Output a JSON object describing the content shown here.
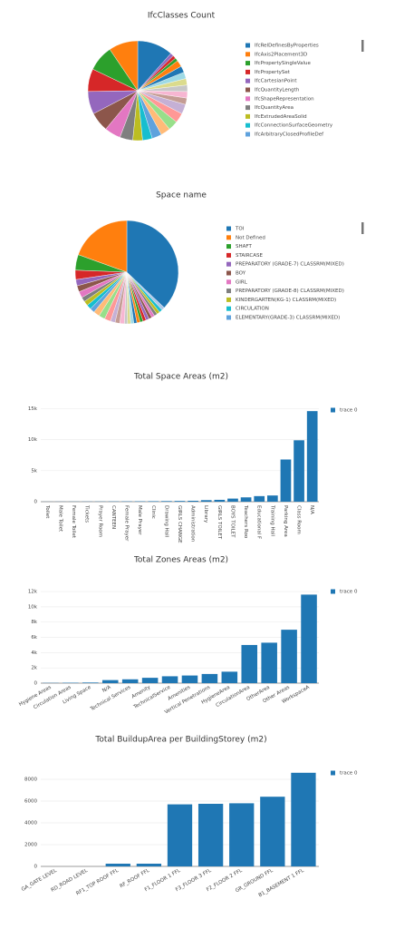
{
  "chart_data": [
    {
      "type": "pie",
      "title": "IfcClasses Count",
      "categories": [
        "IfcRelDefinesByProperties",
        "IfcAxis2Placement3D",
        "IfcPropertySingleValue",
        "IfcPropertySet",
        "IfcCartesianPoint",
        "IfcQuantityLength",
        "IfcShapeRepresentation",
        "IfcQuantityArea",
        "IfcExtrudedAreaSolid",
        "IfcConnectionSurfaceGeometry",
        "IfcArbitraryClosedProfileDef",
        null,
        null,
        null,
        null,
        null,
        null,
        null,
        null,
        null,
        null,
        null,
        null,
        null,
        null
      ],
      "values": [
        11,
        9,
        8,
        7,
        7,
        6,
        5,
        4,
        3,
        3,
        3,
        3,
        3,
        3,
        3,
        2,
        2,
        2,
        2,
        2,
        2,
        2,
        1,
        1,
        1
      ],
      "colors": [
        "#1f77b4",
        "#ff7f0e",
        "#2ca02c",
        "#d62728",
        "#9467bd",
        "#8c564b",
        "#e377c2",
        "#7f7f7f",
        "#bcbd22",
        "#17becf",
        "#5fa2dd",
        "#ffbb78",
        "#98df8a",
        "#ff9896",
        "#c5b0d5",
        "#c49c94",
        "#f7b6d2",
        "#c7c7c7",
        "#dbdb8d",
        "#9edae5",
        "#1f77b4",
        "#ff7f0e",
        "#2ca02c",
        "#d62728",
        "#9467bd"
      ]
    },
    {
      "type": "pie",
      "title": "Space name",
      "categories": [
        "TOI",
        "Not Defined",
        "SHAFT",
        "STAIRCASE",
        "PREPARATORY (GRADE-7) CLASSRM(MIXED)",
        "BOY",
        "GIRL",
        "PREPARATORY (GRADE-8) CLASSRM(MIXED)",
        "KINDERGARTEN(KG-1) CLASSRM(MIXED)",
        "CIRCULATION",
        "ELEMENTARY(GRADE-3) CLASSRM(MIXED)",
        null,
        null,
        null,
        null,
        null,
        null,
        null,
        null,
        null,
        null,
        null,
        null,
        null,
        null,
        null,
        null,
        null,
        null,
        null,
        null
      ],
      "values": [
        38,
        20,
        5,
        3,
        2,
        2,
        2,
        1.5,
        1.5,
        1.5,
        1.5,
        2,
        2,
        2,
        1.5,
        1.5,
        1.5,
        1,
        1,
        1,
        1,
        1,
        1,
        1,
        1,
        1,
        1,
        1,
        1,
        1,
        1
      ],
      "colors": [
        "#1f77b4",
        "#ff7f0e",
        "#2ca02c",
        "#d62728",
        "#9467bd",
        "#8c564b",
        "#e377c2",
        "#7f7f7f",
        "#bcbd22",
        "#17becf",
        "#5fa2dd",
        "#ffbb78",
        "#98df8a",
        "#ff9896",
        "#c5b0d5",
        "#c49c94",
        "#f7b6d2",
        "#c7c7c7",
        "#dbdb8d",
        "#9edae5",
        "#1f77b4",
        "#ff7f0e",
        "#2ca02c",
        "#d62728",
        "#9467bd",
        "#8c564b",
        "#e377c2",
        "#7f7f7f",
        "#bcbd22",
        "#17becf",
        "#aec7e8"
      ]
    },
    {
      "type": "bar",
      "title": "Total Space Areas (m2)",
      "categories": [
        "Toilet",
        "Male Toilet",
        "Female Toilet",
        "Tickets",
        "Prayer Room",
        "CANTEEN",
        "Female Prayer",
        "Male Prayer",
        "Clinic",
        "Drawing Hall",
        "GIRLS CHANGE",
        "Administration",
        "Library",
        "GIRLS TOILET",
        "BOYS TOILET",
        "Teachers Roo",
        "Educational F",
        "Training Hall",
        "Parking Area",
        "Class Room",
        "N/A"
      ],
      "series": [
        {
          "name": "trace 0",
          "color": "#1f77b4",
          "values": [
            10,
            15,
            20,
            25,
            30,
            40,
            50,
            60,
            80,
            100,
            120,
            150,
            250,
            300,
            500,
            700,
            900,
            1000,
            6800,
            9900,
            14600
          ]
        }
      ],
      "ylim": [
        0,
        15500
      ],
      "yticks": [
        0,
        {
          "value": 5000,
          "label": "5k"
        },
        {
          "value": 10000,
          "label": "10k"
        },
        {
          "value": 15000,
          "label": "15k"
        }
      ],
      "grid": true,
      "label_rotation": 90
    },
    {
      "type": "bar",
      "title": "Total Zones Areas (m2)",
      "categories": [
        "Hygiene Areas",
        "Circulation Areas",
        "Living Space",
        "N/A",
        "Technical Services",
        "Amenity",
        "TechnicalService",
        "Amenities",
        "Vertical Penetrations",
        "HygieneArea",
        "CirculationArea",
        "OtherArea",
        "Other Areas",
        "WorkspaceA"
      ],
      "series": [
        {
          "name": "trace 0",
          "color": "#1f77b4",
          "values": [
            30,
            50,
            80,
            400,
            500,
            700,
            900,
            1000,
            1200,
            1500,
            5000,
            5300,
            7000,
            11600
          ]
        }
      ],
      "ylim": [
        0,
        12600
      ],
      "yticks": [
        0,
        {
          "value": 2000,
          "label": "2k"
        },
        {
          "value": 4000,
          "label": "4k"
        },
        {
          "value": 6000,
          "label": "6k"
        },
        {
          "value": 8000,
          "label": "8k"
        },
        {
          "value": 10000,
          "label": "10k"
        },
        {
          "value": 12000,
          "label": "12k"
        }
      ],
      "grid": true,
      "label_rotation": -30
    },
    {
      "type": "bar",
      "title": "Total BuildupArea per BuildingStorey (m2)",
      "categories": [
        "GA_GATE LEVEL",
        "RD_ROAD LEVEL",
        "RF1_TOP ROOF FFL",
        "RF_ROOF FFL",
        "F1_FLOOR 1 FFL",
        "F3_FLOOR 3 FFL",
        "F2_FLOOR 2 FFL",
        "GR_GROUND FFL",
        "B1_BASEMENT 1 FFL"
      ],
      "series": [
        {
          "name": "trace 0",
          "color": "#1f77b4",
          "values": [
            0,
            0,
            250,
            250,
            5700,
            5750,
            5800,
            6400,
            8600
          ]
        }
      ],
      "ylim": [
        0,
        9000
      ],
      "yticks": [
        0,
        2000,
        4000,
        6000,
        8000
      ],
      "grid": true,
      "label_rotation": -30
    }
  ]
}
